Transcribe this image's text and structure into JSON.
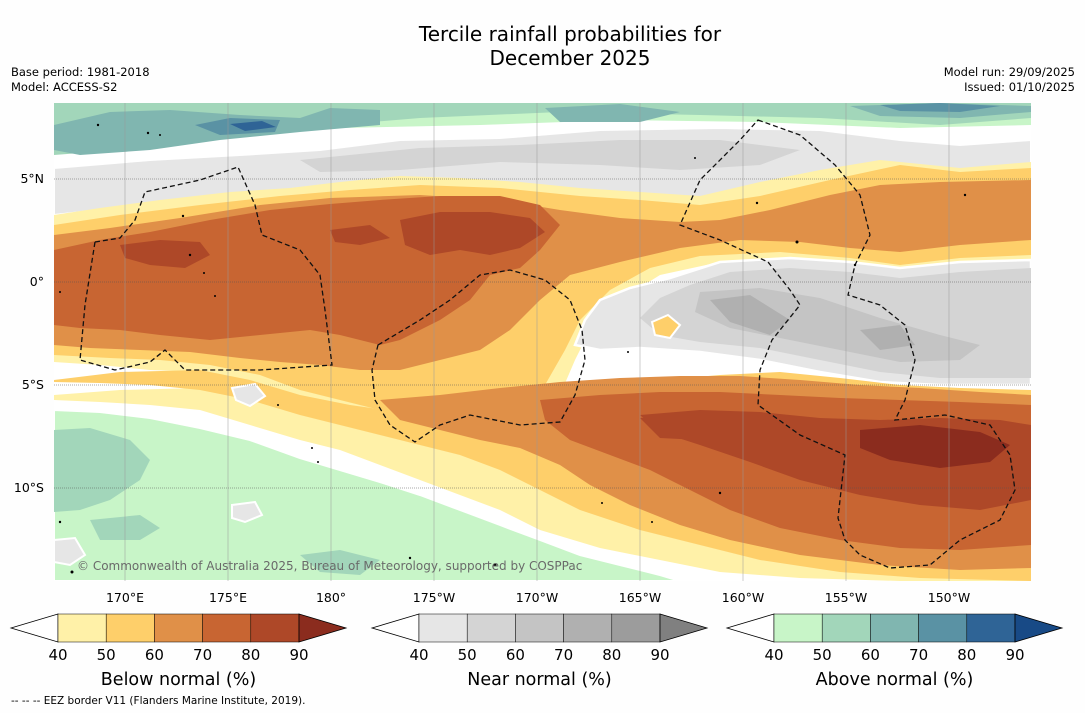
{
  "title_line1": "Tercile rainfall probabilities for",
  "title_line2": "December 2025",
  "base_period": "Base period: 1981-2018",
  "model": "Model: ACCESS-S2",
  "model_run": "Model run: 29/09/2025",
  "issued": "Issued: 01/10/2025",
  "copyright": "© Commonwealth of Australia 2025, Bureau of Meteorology, supported by COSPPac",
  "lat_labels": [
    "5°N",
    "0°",
    "5°S",
    "10°S"
  ],
  "lon_labels": [
    "170°E",
    "175°E",
    "180°",
    "175°W",
    "170°W",
    "165°W",
    "160°W",
    "155°W",
    "150°W"
  ],
  "colorbars": [
    {
      "name": "below",
      "title": "Below normal (%)",
      "ticks": [
        "40",
        "50",
        "60",
        "70",
        "80",
        "90"
      ],
      "colors": [
        "#fff1a8",
        "#fecf6a",
        "#e09048",
        "#c86532",
        "#ae4828",
        "#8b2c1e"
      ]
    },
    {
      "name": "near",
      "title": "Near normal (%)",
      "ticks": [
        "40",
        "50",
        "60",
        "70",
        "80",
        "90"
      ],
      "colors": [
        "#e6e6e6",
        "#d4d4d4",
        "#c4c4c4",
        "#b0b0b0",
        "#9c9c9c",
        "#808080"
      ]
    },
    {
      "name": "above",
      "title": "Above normal (%)",
      "ticks": [
        "40",
        "50",
        "60",
        "70",
        "80",
        "90"
      ],
      "colors": [
        "#c8f5c8",
        "#a2d6ba",
        "#80b6b0",
        "#5a92a4",
        "#2f6496",
        "#184a86"
      ]
    }
  ],
  "footer": "--  --  -- EEZ border V11 (Flanders Marine Institute, 2019)."
}
